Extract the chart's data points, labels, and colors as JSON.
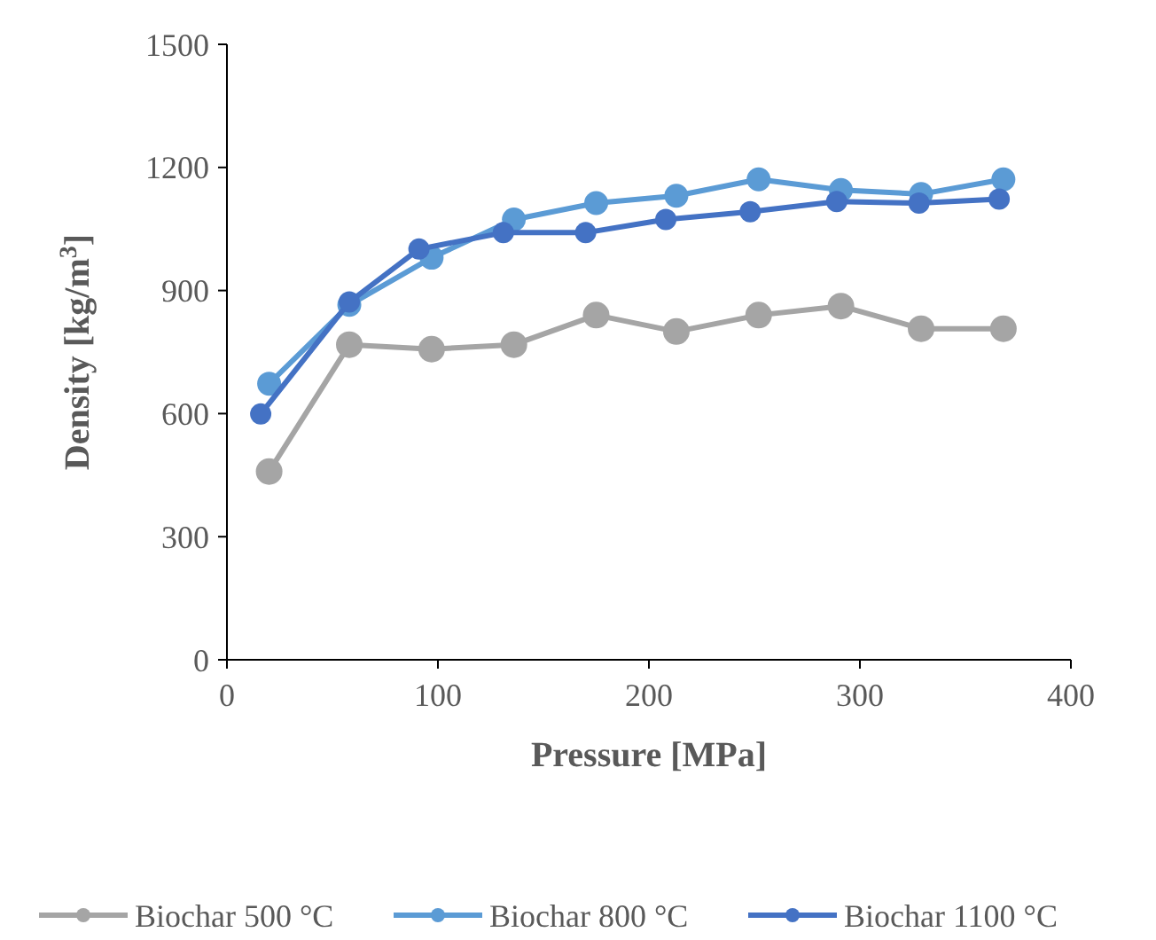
{
  "chart_data": {
    "type": "line",
    "xlabel": "Pressure [MPa]",
    "ylabel": "Density [kg/m$^{3}$]",
    "xlim": [
      0,
      400
    ],
    "xticks": [
      0,
      100,
      200,
      300,
      400
    ],
    "ylim": [
      0,
      1500
    ],
    "yticks": [
      0,
      300,
      600,
      900,
      1200,
      1500
    ],
    "grid": false,
    "legend": "bottom",
    "marker": "circle",
    "line_style": "solid",
    "series": [
      {
        "name": "Biochar 500 °C",
        "color": "#a5a5a5",
        "x": [
          20,
          58,
          97,
          136,
          175,
          213,
          252,
          291,
          329,
          368
        ],
        "values": [
          459,
          768,
          757,
          768,
          840,
          800,
          840,
          862,
          807,
          807
        ]
      },
      {
        "name": "Biochar 800 °C",
        "color": "#5b9bd5",
        "x": [
          20,
          58,
          97,
          136,
          175,
          213,
          252,
          291,
          329,
          368
        ],
        "values": [
          673,
          865,
          980,
          1073,
          1113,
          1131,
          1171,
          1145,
          1135,
          1171
        ]
      },
      {
        "name": "Biochar 1100 °C",
        "color": "#4472c4",
        "x": [
          16,
          58,
          91,
          131,
          170,
          208,
          248,
          289,
          328,
          366
        ],
        "values": [
          599,
          872,
          1001,
          1041,
          1041,
          1073,
          1092,
          1117,
          1113,
          1123
        ]
      }
    ]
  }
}
